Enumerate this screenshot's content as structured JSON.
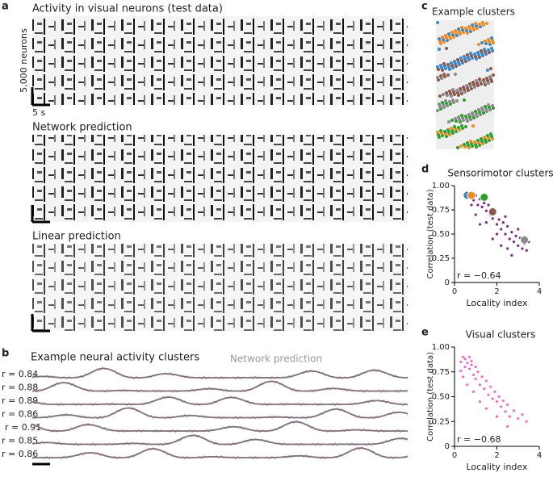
{
  "panel_a": {
    "letter": "a",
    "title": "Activity in visual neurons (test data)",
    "y_scale": "5,000 neurons",
    "x_scale": "5 s",
    "title2": "Network prediction",
    "title3": "Linear prediction"
  },
  "panel_b": {
    "letter": "b",
    "title": "Example neural activity clusters",
    "legend": "Network prediction",
    "r_labels": [
      "r = 0.84",
      "r = 0.88",
      "r = 0.89",
      "r = 0.86",
      "r = 0.91",
      "r = 0.85",
      "r = 0.86"
    ]
  },
  "panel_c": {
    "letter": "c",
    "title": "Example clusters"
  },
  "panel_d": {
    "letter": "d"
  },
  "panel_e": {
    "letter": "e"
  },
  "chart_data": [
    {
      "type": "scatter",
      "title": "Sensorimotor clusters",
      "xlabel": "Locality index",
      "ylabel": "Correlation (test data)",
      "annotation": "r = −0.64",
      "xlim": [
        0,
        4
      ],
      "ylim": [
        0,
        1
      ],
      "xticks": [
        0,
        2,
        4
      ],
      "yticks": [
        0,
        {
          "value": 0.25,
          "label": "0.25"
        },
        {
          "value": 0.5,
          "label": "0.50"
        },
        {
          "value": 0.75,
          "label": "0.75"
        },
        {
          "value": 1,
          "label": "1.00"
        }
      ],
      "series": [
        {
          "color": "#7b2a7f",
          "size": 1.6,
          "x": [
            0.5,
            0.7,
            0.9,
            1.0,
            1.1,
            1.2,
            1.3,
            1.4,
            1.5,
            1.6,
            1.7,
            1.8,
            1.9,
            2.0,
            2.1,
            2.2,
            2.3,
            2.4,
            2.5,
            2.6,
            2.7,
            2.8,
            2.9,
            3.0,
            3.1,
            3.2,
            3.3,
            3.4,
            1.0,
            1.5,
            2.0,
            2.5,
            3.0,
            0.8,
            1.2,
            1.8,
            2.2,
            2.7,
            3.5,
            2.4
          ],
          "y": [
            0.92,
            0.88,
            0.85,
            0.9,
            0.8,
            0.86,
            0.78,
            0.82,
            0.74,
            0.8,
            0.7,
            0.66,
            0.72,
            0.6,
            0.65,
            0.55,
            0.62,
            0.5,
            0.58,
            0.45,
            0.52,
            0.42,
            0.48,
            0.38,
            0.46,
            0.35,
            0.4,
            0.33,
            0.7,
            0.62,
            0.5,
            0.35,
            0.55,
            0.8,
            0.6,
            0.45,
            0.38,
            0.28,
            0.42,
            0.68
          ]
        },
        {
          "color": "#3a86c8",
          "size": 5,
          "x": [
            0.6
          ],
          "y": [
            0.9
          ]
        },
        {
          "color": "#f08a24",
          "size": 5,
          "x": [
            0.8
          ],
          "y": [
            0.9
          ]
        },
        {
          "color": "#2ca02c",
          "size": 5,
          "x": [
            1.4
          ],
          "y": [
            0.88
          ]
        },
        {
          "color": "#8c564b",
          "size": 5,
          "x": [
            1.8
          ],
          "y": [
            0.73
          ]
        },
        {
          "color": "#8a8a8a",
          "size": 5,
          "x": [
            3.3
          ],
          "y": [
            0.44
          ]
        }
      ]
    },
    {
      "type": "scatter",
      "title": "Visual clusters",
      "xlabel": "Locality index",
      "ylabel": "Correlation (test data)",
      "annotation": "r = −0.68",
      "xlim": [
        0,
        4
      ],
      "ylim": [
        0,
        1
      ],
      "xticks": [
        0,
        2,
        4
      ],
      "yticks": [
        0,
        {
          "value": 0.25,
          "label": "0.25"
        },
        {
          "value": 0.5,
          "label": "0.50"
        },
        {
          "value": 0.75,
          "label": "0.75"
        },
        {
          "value": 1,
          "label": "1.00"
        }
      ],
      "series": [
        {
          "color": "#f06ec8",
          "size": 1.6,
          "x": [
            0.3,
            0.4,
            0.5,
            0.5,
            0.6,
            0.7,
            0.7,
            0.8,
            0.9,
            1.0,
            1.0,
            1.1,
            1.2,
            1.3,
            1.4,
            1.5,
            1.6,
            1.7,
            1.8,
            1.9,
            2.0,
            2.1,
            2.2,
            2.3,
            2.4,
            2.5,
            2.6,
            2.8,
            3.0,
            3.2,
            3.4,
            0.4,
            0.6,
            0.9,
            1.2,
            1.5,
            2.0,
            2.5,
            0.3,
            0.8
          ],
          "y": [
            0.85,
            0.9,
            0.8,
            0.88,
            0.84,
            0.78,
            0.9,
            0.82,
            0.72,
            0.8,
            0.68,
            0.75,
            0.62,
            0.7,
            0.58,
            0.66,
            0.52,
            0.6,
            0.48,
            0.55,
            0.45,
            0.5,
            0.4,
            0.46,
            0.35,
            0.42,
            0.3,
            0.36,
            0.28,
            0.32,
            0.25,
            0.7,
            0.62,
            0.55,
            0.45,
            0.38,
            0.3,
            0.2,
            0.76,
            0.86
          ]
        }
      ]
    }
  ]
}
